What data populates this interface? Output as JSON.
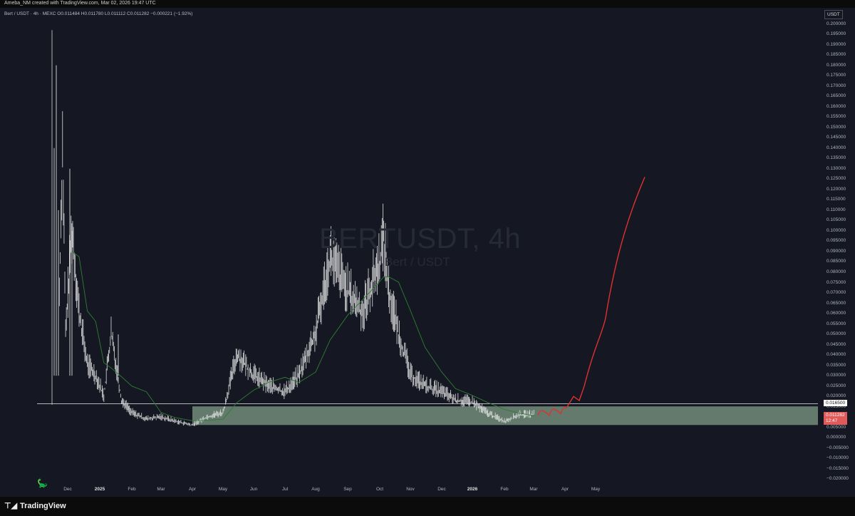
{
  "header": {
    "caption": "Ameba_NM created with TradingView.com, Mar 02, 2026 19:47 UTC"
  },
  "legend": {
    "symbol": "Bert / USDT · 4h · MEXC",
    "ohlc": "O0.011484  H0.011780  L0.011112  C0.011282  −0.000221 (−1.92%)"
  },
  "watermark": {
    "title": "BERTUSDT, 4h",
    "subtitle": "Bert / USDT"
  },
  "price_axis": {
    "currency": "USDT",
    "labels": [
      "0.200000",
      "0.195000",
      "0.190000",
      "0.185000",
      "0.180000",
      "0.175000",
      "0.170000",
      "0.165000",
      "0.160000",
      "0.155000",
      "0.150000",
      "0.145000",
      "0.140000",
      "0.135000",
      "0.130000",
      "0.125000",
      "0.120000",
      "0.115000",
      "0.110000",
      "0.105000",
      "0.100000",
      "0.095000",
      "0.090000",
      "0.085000",
      "0.080000",
      "0.075000",
      "0.070000",
      "0.065000",
      "0.060000",
      "0.055000",
      "0.050000",
      "0.045000",
      "0.040000",
      "0.035000",
      "0.030000",
      "0.025000",
      "0.020000",
      "0.015000",
      "0.010000",
      "0.005000",
      "0.000000",
      "−0.005000",
      "−0.010000",
      "−0.015000",
      "−0.020000"
    ],
    "level_tag": "0.016500",
    "price_tag": "0.011282",
    "countdown": "12:47"
  },
  "time_axis": {
    "labels": [
      {
        "t": "Dec",
        "bold": false
      },
      {
        "t": "2025",
        "bold": true
      },
      {
        "t": "Feb",
        "bold": false
      },
      {
        "t": "Mar",
        "bold": false
      },
      {
        "t": "Apr",
        "bold": false
      },
      {
        "t": "May",
        "bold": false
      },
      {
        "t": "Jun",
        "bold": false
      },
      {
        "t": "Jul",
        "bold": false
      },
      {
        "t": "Aug",
        "bold": false
      },
      {
        "t": "Sep",
        "bold": false
      },
      {
        "t": "Oct",
        "bold": false
      },
      {
        "t": "Nov",
        "bold": false
      },
      {
        "t": "Dec",
        "bold": false
      },
      {
        "t": "2026",
        "bold": true
      },
      {
        "t": "Feb",
        "bold": false
      },
      {
        "t": "Mar",
        "bold": false
      },
      {
        "t": "Apr",
        "bold": false
      },
      {
        "t": "May",
        "bold": false
      }
    ]
  },
  "footer": {
    "brand": "TradingView"
  },
  "drawings": {
    "resistance_level": 0.0165,
    "support_zone": [
      0.0062,
      0.0152
    ],
    "projection_target": 0.126
  },
  "colors": {
    "background": "#151822",
    "candles": "#e8e8e8",
    "moving_average": "#2e7d32",
    "zone": "#7e9b86",
    "projection": "#e03030",
    "price_tag": "#e05a5a"
  },
  "chart_data": {
    "type": "line",
    "series": [
      {
        "x": [
          "2024-11-23",
          "2024-11-26",
          "2024-11-29",
          "2024-12-05",
          "2024-12-12",
          "2024-12-20",
          "2024-12-28",
          "2025-01-05",
          "2025-01-12",
          "2025-01-22",
          "2025-02-01",
          "2025-02-15",
          "2025-03-01",
          "2025-03-15",
          "2025-04-01",
          "2025-04-15",
          "2025-05-01",
          "2025-05-15",
          "2025-06-01",
          "2025-06-15",
          "2025-07-01",
          "2025-07-15",
          "2025-08-01",
          "2025-08-15",
          "2025-09-01",
          "2025-09-15",
          "2025-10-01",
          "2025-10-05",
          "2025-10-10",
          "2025-10-20",
          "2025-11-01",
          "2025-11-15",
          "2025-12-01",
          "2025-12-15",
          "2026-01-01",
          "2026-01-15",
          "2026-02-01",
          "2026-02-15",
          "2026-03-02"
        ],
        "values": [
          0.07,
          0.14,
          0.05,
          0.1,
          0.06,
          0.035,
          0.03,
          0.02,
          0.05,
          0.018,
          0.012,
          0.009,
          0.01,
          0.008,
          0.006,
          0.01,
          0.012,
          0.04,
          0.03,
          0.025,
          0.022,
          0.03,
          0.05,
          0.087,
          0.07,
          0.06,
          0.085,
          0.096,
          0.07,
          0.05,
          0.03,
          0.025,
          0.022,
          0.018,
          0.017,
          0.012,
          0.008,
          0.011,
          0.011282
        ]
      }
    ],
    "ylim": [
      -0.02,
      0.2
    ]
  }
}
